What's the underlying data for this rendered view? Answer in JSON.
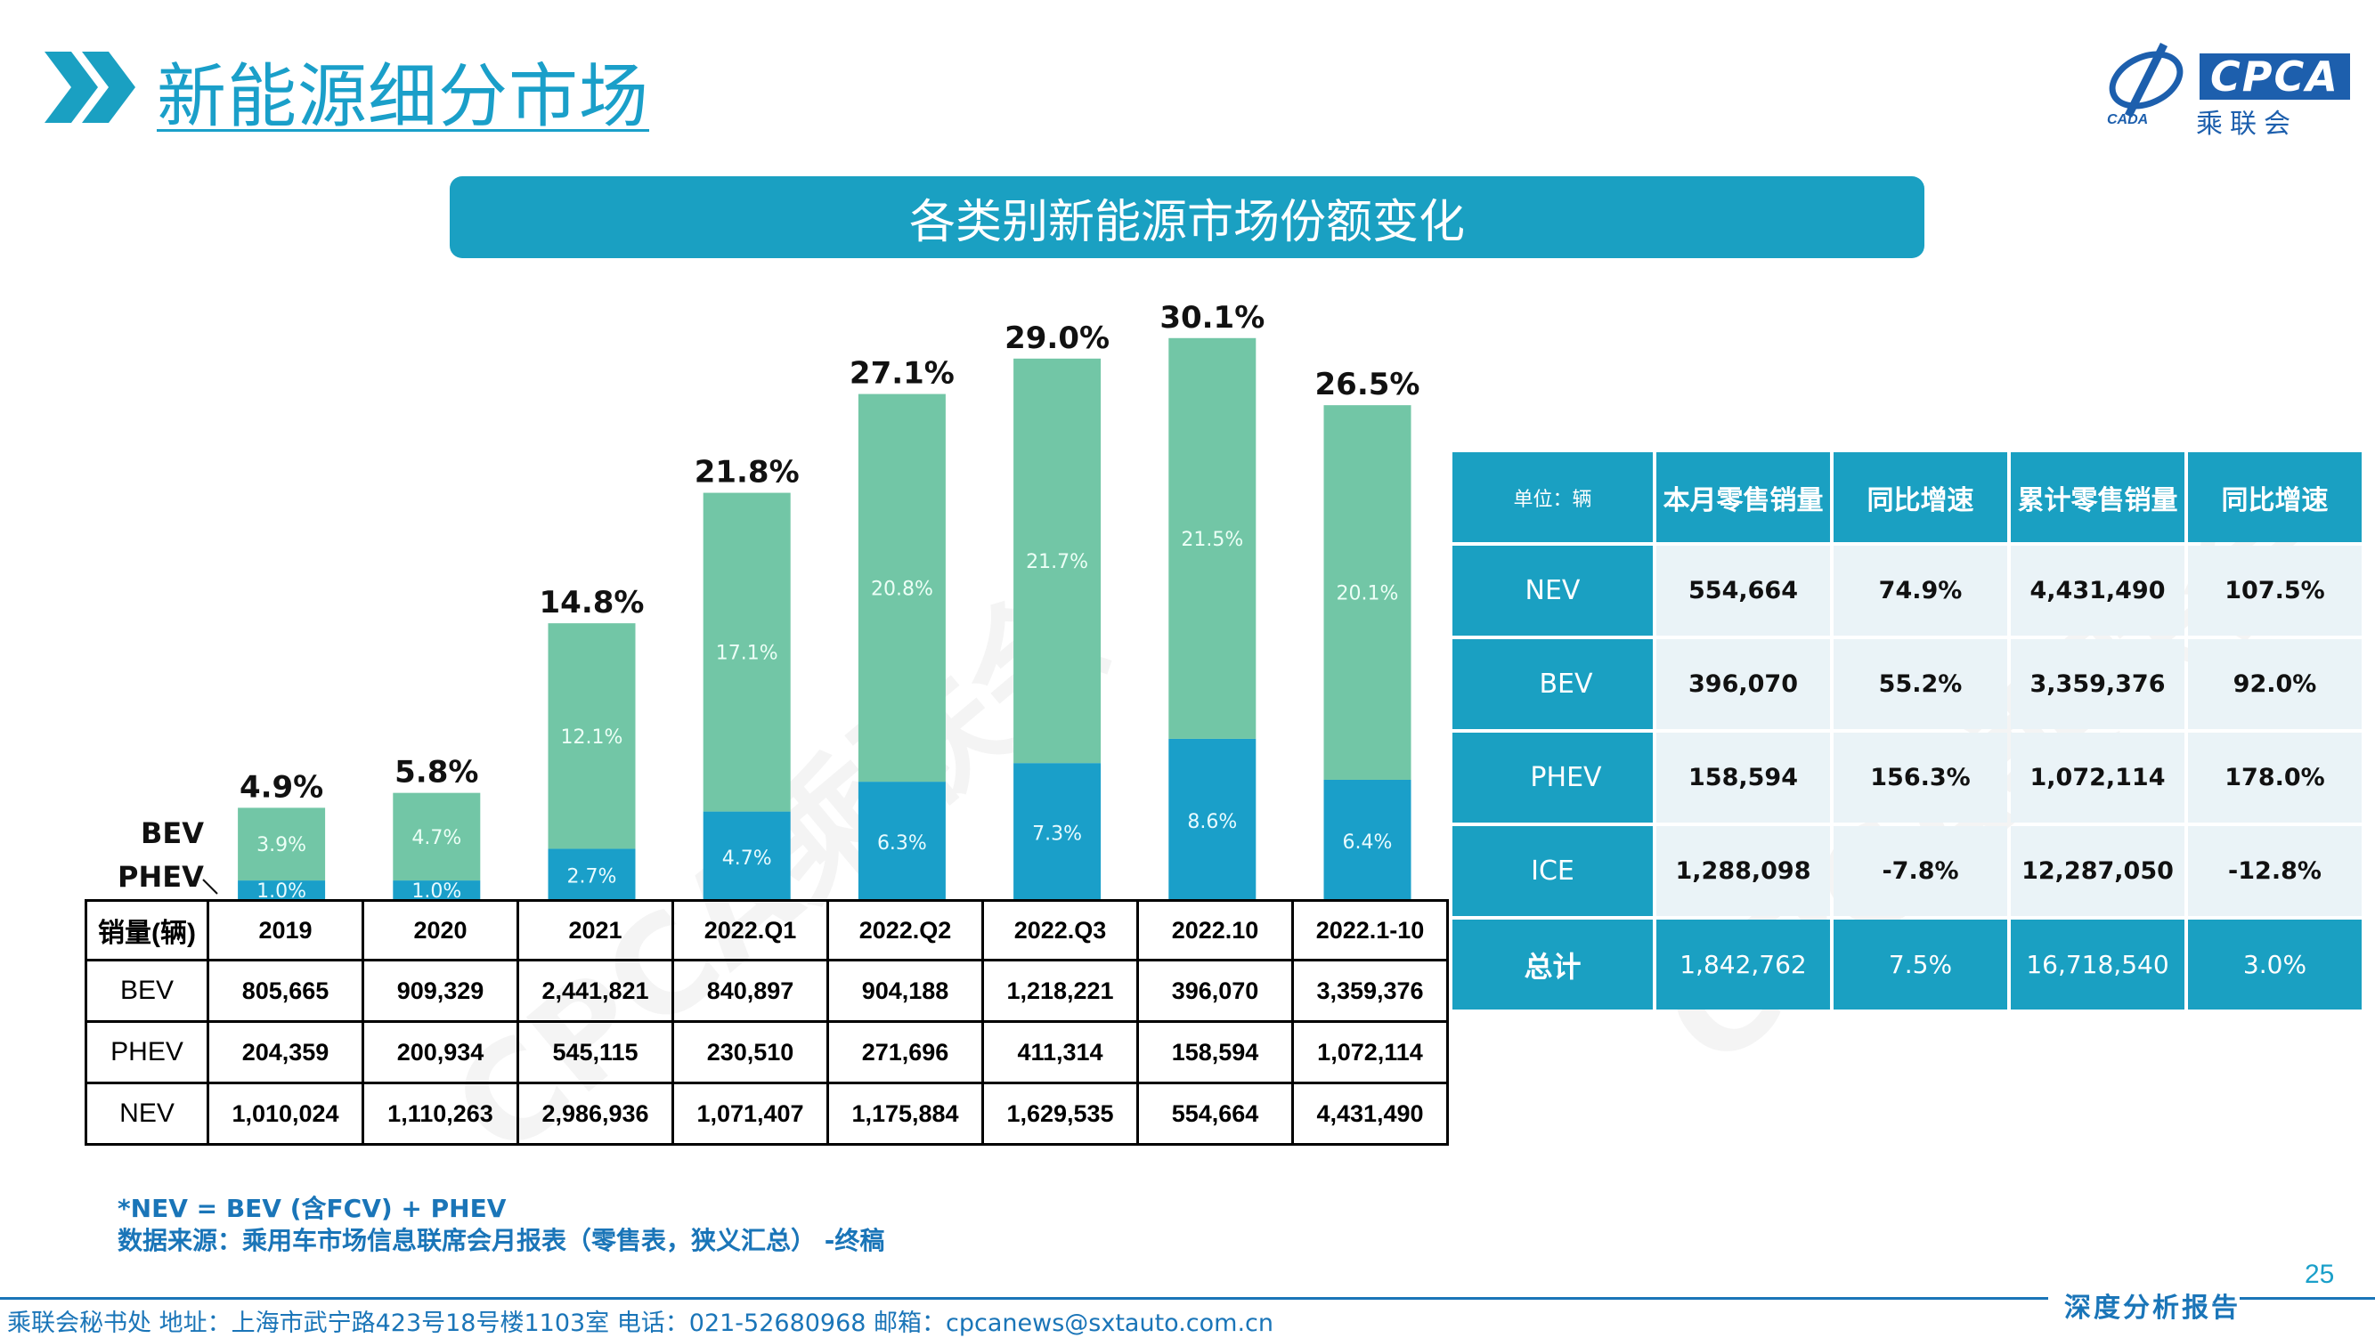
{
  "header": {
    "title": "新能源细分市场",
    "logo_text": "CPCA",
    "logo_sub": "乘联会",
    "logo_small": "CADA"
  },
  "banner": {
    "title": "各类别新能源市场份额变化"
  },
  "colors": {
    "bev": "#72c6a6",
    "phev": "#1a9fc9",
    "banner": "#1aa0c2",
    "title": "#1a9fc9"
  },
  "chart_data": {
    "type": "bar",
    "stacked": true,
    "categories": [
      "2019",
      "2020",
      "2021",
      "2022.Q1",
      "2022.Q2",
      "2022.Q3",
      "2022.10",
      "2022.1-10"
    ],
    "series": [
      {
        "name": "PHEV",
        "values": [
          1.0,
          1.0,
          2.7,
          4.7,
          6.3,
          7.3,
          8.6,
          6.4
        ],
        "labels": [
          "1.0%",
          "1.0%",
          "2.7%",
          "4.7%",
          "6.3%",
          "7.3%",
          "8.6%",
          "6.4%"
        ],
        "color": "#1a9fc9"
      },
      {
        "name": "BEV",
        "values": [
          3.9,
          4.7,
          12.1,
          17.1,
          20.8,
          21.7,
          21.5,
          20.1
        ],
        "labels": [
          "3.9%",
          "4.7%",
          "12.1%",
          "17.1%",
          "20.8%",
          "21.7%",
          "21.5%",
          "20.1%"
        ],
        "color": "#72c6a6"
      }
    ],
    "totals": [
      4.9,
      5.8,
      14.8,
      21.8,
      27.1,
      29.0,
      30.1,
      26.5
    ],
    "total_labels": [
      "4.9%",
      "5.8%",
      "14.8%",
      "21.8%",
      "27.1%",
      "29.0%",
      "30.1%",
      "26.5%"
    ],
    "ylim": [
      0,
      32
    ],
    "title": "",
    "xlabel": "",
    "ylabel": ""
  },
  "sales_table": {
    "header_label": "销量(辆)",
    "columns": [
      "2019",
      "2020",
      "2021",
      "2022.Q1",
      "2022.Q2",
      "2022.Q3",
      "2022.10",
      "2022.1-10"
    ],
    "rows": [
      {
        "label": "BEV",
        "values": [
          "805,665",
          "909,329",
          "2,441,821",
          "840,897",
          "904,188",
          "1,218,221",
          "396,070",
          "3,359,376"
        ]
      },
      {
        "label": "PHEV",
        "values": [
          "204,359",
          "200,934",
          "545,115",
          "230,510",
          "271,696",
          "411,314",
          "158,594",
          "1,072,114"
        ]
      },
      {
        "label": "NEV",
        "values": [
          "1,010,024",
          "1,110,263",
          "2,986,936",
          "1,071,407",
          "1,175,884",
          "1,629,535",
          "554,664",
          "4,431,490"
        ]
      }
    ]
  },
  "retail_table": {
    "unit": "单位：辆",
    "headers": [
      "本月零售销量",
      "同比增速",
      "累计零售销量",
      "同比增速"
    ],
    "rows": [
      {
        "label": "NEV",
        "values": [
          "554,664",
          "74.9%",
          "4,431,490",
          "107.5%"
        ]
      },
      {
        "label": "BEV",
        "values": [
          "396,070",
          "55.2%",
          "3,359,376",
          "92.0%"
        ]
      },
      {
        "label": "PHEV",
        "values": [
          "158,594",
          "156.3%",
          "1,072,114",
          "178.0%"
        ]
      },
      {
        "label": "ICE",
        "values": [
          "1,288,098",
          "-7.8%",
          "12,287,050",
          "-12.8%"
        ]
      }
    ],
    "total": {
      "label": "总计",
      "values": [
        "1,842,762",
        "7.5%",
        "16,718,540",
        "3.0%"
      ]
    }
  },
  "notes": {
    "formula": "*NEV = BEV (含FCV) + PHEV",
    "source": "数据来源：乘用车市场信息联席会月报表（零售表，狭义汇总） -终稿"
  },
  "footer": {
    "text": "乘联会秘书处   地址：上海市武宁路423号18号楼1103室   电话：021-52680968   邮箱：cpcanews@sxtauto.com.cn",
    "report_tag": "深度分析报告",
    "page_number": "25"
  },
  "watermark": "CPCA乘联会"
}
